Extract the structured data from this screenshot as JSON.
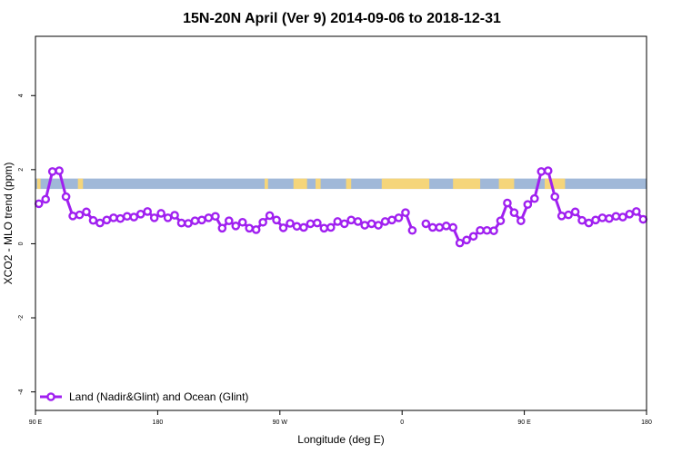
{
  "chart_data": {
    "type": "line",
    "title": "15N-20N April (Ver 9)   2014-09-06 to 2018-12-31",
    "xlabel": "Longitude (deg E)",
    "ylabel": "XCO2 - MLO trend (ppm)",
    "xlim": [
      0,
      360
    ],
    "ylim": [
      -4.5,
      5.6
    ],
    "x_ticks": [
      {
        "value": 0,
        "label": "90 E"
      },
      {
        "value": 72,
        "label": "180"
      },
      {
        "value": 144,
        "label": "90 W"
      },
      {
        "value": 216,
        "label": "0"
      },
      {
        "value": 288,
        "label": "90 E"
      },
      {
        "value": 360,
        "label": "180"
      }
    ],
    "y_ticks": [
      {
        "value": -4,
        "label": "-4"
      },
      {
        "value": -2,
        "label": "-2"
      },
      {
        "value": 0,
        "label": "0"
      },
      {
        "value": 2,
        "label": "2"
      },
      {
        "value": 4,
        "label": "4"
      }
    ],
    "grid": false,
    "legend_position": "bottom-left",
    "series": [
      {
        "name": "Land (Nadir&Glint) and Ocean (Glint)",
        "color": "#a020f0",
        "x": [
          2,
          6,
          10,
          14,
          18,
          22,
          26,
          30,
          34,
          38,
          42,
          46,
          50,
          54,
          58,
          62,
          66,
          70,
          74,
          78,
          82,
          86,
          90,
          94,
          98,
          102,
          106,
          110,
          114,
          118,
          122,
          126,
          130,
          134,
          138,
          142,
          146,
          150,
          154,
          158,
          162,
          166,
          170,
          174,
          178,
          182,
          186,
          190,
          194,
          198,
          202,
          206,
          210,
          214,
          218,
          222,
          230,
          234,
          238,
          242,
          246,
          250,
          254,
          258,
          262,
          266,
          270,
          274,
          278,
          282,
          286,
          290,
          294,
          298,
          302,
          306,
          310,
          314,
          318,
          322,
          326,
          330,
          334,
          338,
          342,
          346,
          350,
          354,
          358
        ],
        "y": [
          1.08,
          1.2,
          1.95,
          1.97,
          1.27,
          0.75,
          0.78,
          0.86,
          0.63,
          0.56,
          0.64,
          0.7,
          0.68,
          0.74,
          0.72,
          0.8,
          0.87,
          0.7,
          0.82,
          0.7,
          0.77,
          0.56,
          0.55,
          0.62,
          0.64,
          0.7,
          0.74,
          0.42,
          0.62,
          0.48,
          0.58,
          0.42,
          0.38,
          0.58,
          0.76,
          0.64,
          0.43,
          0.55,
          0.47,
          0.44,
          0.54,
          0.56,
          0.42,
          0.44,
          0.6,
          0.54,
          0.64,
          0.6,
          0.5,
          0.54,
          0.5,
          0.6,
          0.64,
          0.7,
          0.84,
          0.36,
          0.54,
          0.44,
          0.44,
          0.48,
          0.44,
          0.02,
          0.1,
          0.2,
          0.36,
          0.36,
          0.35,
          0.62,
          1.1,
          0.84,
          0.62,
          1.06,
          1.22,
          1.95,
          1.97,
          1.27,
          0.75,
          0.78,
          0.86,
          0.63,
          0.56,
          0.64,
          0.7,
          0.68,
          0.74,
          0.72,
          0.8,
          0.87,
          0.66
        ],
        "breaks_after_index": [
          55
        ]
      }
    ],
    "land_ocean_strip": {
      "y_range": [
        1.48,
        1.76
      ],
      "ocean_color": "#a0b8d8",
      "land_color": "#f5d57a",
      "land_ranges": [
        [
          1,
          3
        ],
        [
          25,
          28
        ],
        [
          135,
          137
        ],
        [
          152,
          160
        ],
        [
          165,
          168
        ],
        [
          183,
          186
        ],
        [
          204,
          232
        ],
        [
          246,
          262
        ],
        [
          273,
          282
        ],
        [
          300,
          312
        ]
      ]
    }
  }
}
